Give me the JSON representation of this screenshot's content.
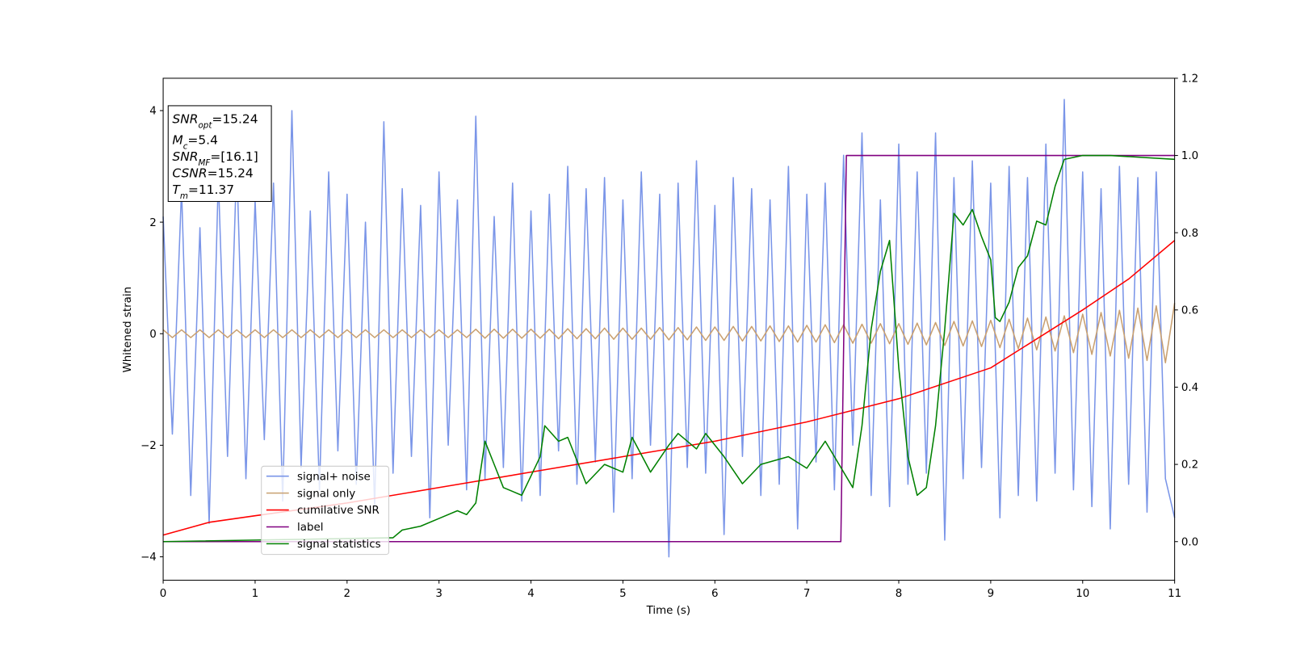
{
  "chart_data": {
    "type": "line",
    "xlabel": "Time (s)",
    "ylabel": "Whitened strain",
    "xlim": [
      0,
      11
    ],
    "xticks": [
      0,
      1,
      2,
      3,
      4,
      5,
      6,
      7,
      8,
      9,
      10,
      11
    ],
    "ylim": [
      -4.42,
      4.58
    ],
    "yticks": [
      {
        "value": -4,
        "label": "−4"
      },
      {
        "value": -2,
        "label": "−2"
      },
      0,
      2,
      4
    ],
    "y2lim": [
      -0.1,
      1.2
    ],
    "y2ticks": [
      {
        "value": 0,
        "label": "0.0"
      },
      {
        "value": 0.2,
        "label": "0.2"
      },
      {
        "value": 0.4,
        "label": "0.4"
      },
      {
        "value": 0.6,
        "label": "0.6"
      },
      {
        "value": 0.8,
        "label": "0.8"
      },
      {
        "value": 1,
        "label": "1.0"
      },
      {
        "value": 1.2,
        "label": "1.2"
      }
    ],
    "x": [
      0,
      0.1,
      0.2,
      0.3,
      0.4,
      0.5,
      0.6,
      0.7,
      0.8,
      0.9,
      1,
      1.1,
      1.2,
      1.3,
      1.4,
      1.5,
      1.6,
      1.7,
      1.8,
      1.9,
      2,
      2.1,
      2.2,
      2.3,
      2.4,
      2.5,
      2.6,
      2.7,
      2.8,
      2.9,
      3,
      3.1,
      3.2,
      3.3,
      3.4,
      3.5,
      3.6,
      3.7,
      3.8,
      3.9,
      4,
      4.1,
      4.2,
      4.3,
      4.4,
      4.5,
      4.6,
      4.7,
      4.8,
      4.9,
      5,
      5.1,
      5.2,
      5.3,
      5.4,
      5.5,
      5.6,
      5.7,
      5.8,
      5.9,
      6,
      6.1,
      6.2,
      6.3,
      6.4,
      6.5,
      6.6,
      6.7,
      6.8,
      6.9,
      7,
      7.1,
      7.2,
      7.3,
      7.4,
      7.5,
      7.6,
      7.7,
      7.8,
      7.9,
      8,
      8.1,
      8.2,
      8.3,
      8.4,
      8.5,
      8.6,
      8.7,
      8.8,
      8.9,
      9,
      9.1,
      9.2,
      9.3,
      9.4,
      9.5,
      9.6,
      9.7,
      9.8,
      9.9,
      10,
      10.1,
      10.2,
      10.3,
      10.4,
      10.5,
      10.6,
      10.7,
      10.8,
      10.9,
      11
    ],
    "series": [
      {
        "name": "signal+ noise",
        "color": "#7a95e8",
        "values": [
          2.1,
          -1.8,
          2.6,
          -2.9,
          1.9,
          -3.4,
          2.8,
          -2.2,
          3.1,
          -2.6,
          2.4,
          -1.9,
          2.7,
          -3.0,
          4.0,
          -2.4,
          2.2,
          -2.8,
          2.9,
          -2.1,
          2.5,
          -2.7,
          2.0,
          -3.1,
          3.8,
          -2.5,
          2.6,
          -2.2,
          2.3,
          -3.3,
          2.9,
          -2.0,
          2.4,
          -2.8,
          3.9,
          -2.6,
          2.1,
          -2.4,
          2.7,
          -3.0,
          2.2,
          -2.9,
          2.5,
          -2.1,
          3.0,
          -2.7,
          2.6,
          -2.3,
          2.8,
          -3.2,
          2.4,
          -2.6,
          2.9,
          -2.0,
          2.5,
          -4.0,
          2.7,
          -2.4,
          3.1,
          -2.5,
          2.3,
          -3.6,
          2.8,
          -2.2,
          2.6,
          -2.9,
          2.4,
          -2.7,
          3.0,
          -3.5,
          2.5,
          -2.3,
          2.7,
          -2.8,
          3.2,
          -2.0,
          3.6,
          -2.9,
          2.4,
          -3.1,
          3.4,
          -2.7,
          2.9,
          -2.5,
          3.6,
          -3.7,
          2.8,
          -2.6,
          3.1,
          -2.4,
          2.7,
          -3.3,
          3.0,
          -2.9,
          2.8,
          -3.0,
          3.4,
          -2.5,
          4.2,
          -2.8,
          2.9,
          -3.1,
          2.6,
          -3.5,
          3.0,
          -2.7,
          2.8,
          -3.2,
          2.9,
          -2.6,
          -3.3
        ]
      },
      {
        "name": "signal only",
        "color": "#c9a070",
        "values": [
          0.07,
          -0.07,
          0.07,
          -0.07,
          0.07,
          -0.07,
          0.07,
          -0.07,
          0.07,
          -0.07,
          0.07,
          -0.07,
          0.07,
          -0.07,
          0.07,
          -0.07,
          0.07,
          -0.07,
          0.07,
          -0.07,
          0.07,
          -0.07,
          0.07,
          -0.07,
          0.07,
          -0.07,
          0.07,
          -0.07,
          0.07,
          -0.07,
          0.07,
          -0.07,
          0.07,
          -0.07,
          0.08,
          -0.08,
          0.08,
          -0.08,
          0.08,
          -0.08,
          0.08,
          -0.08,
          0.08,
          -0.09,
          0.09,
          -0.09,
          0.09,
          -0.09,
          0.1,
          -0.1,
          0.1,
          -0.1,
          0.1,
          -0.1,
          0.11,
          -0.11,
          0.11,
          -0.11,
          0.12,
          -0.12,
          0.12,
          -0.12,
          0.13,
          -0.13,
          0.13,
          -0.13,
          0.14,
          -0.14,
          0.14,
          -0.15,
          0.15,
          -0.15,
          0.16,
          -0.16,
          0.16,
          -0.17,
          0.17,
          -0.17,
          0.18,
          -0.18,
          0.18,
          -0.19,
          0.19,
          -0.2,
          0.2,
          -0.21,
          0.22,
          -0.22,
          0.23,
          -0.23,
          0.24,
          -0.25,
          0.26,
          -0.27,
          0.28,
          -0.29,
          0.3,
          -0.31,
          0.32,
          -0.34,
          0.35,
          -0.37,
          0.38,
          -0.4,
          0.42,
          -0.44,
          0.46,
          -0.48,
          0.5,
          -0.52,
          0.55
        ]
      },
      {
        "name": "cumilative SNR",
        "color": "red",
        "axis": "y2",
        "x": [
          0,
          0.5,
          1,
          2,
          3,
          4,
          5,
          6,
          7,
          8,
          9,
          10,
          10.5,
          11
        ],
        "values": [
          0.017,
          0.05,
          0.067,
          0.1,
          0.14,
          0.18,
          0.22,
          0.26,
          0.31,
          0.37,
          0.45,
          0.6,
          0.68,
          0.78
        ]
      },
      {
        "name": "label",
        "color": "purple",
        "axis": "y2",
        "x": [
          0,
          7.37,
          7.43,
          11
        ],
        "values": [
          0,
          0,
          1,
          1
        ]
      },
      {
        "name": "signal statistics",
        "color": "green",
        "axis": "y2",
        "x": [
          0,
          2.5,
          2.6,
          2.8,
          3.0,
          3.2,
          3.3,
          3.4,
          3.5,
          3.6,
          3.7,
          3.9,
          4.0,
          4.1,
          4.15,
          4.3,
          4.4,
          4.6,
          4.8,
          5.0,
          5.1,
          5.3,
          5.5,
          5.6,
          5.8,
          5.9,
          6.1,
          6.3,
          6.5,
          6.8,
          7.0,
          7.2,
          7.4,
          7.5,
          7.6,
          7.7,
          7.8,
          7.9,
          8.0,
          8.1,
          8.2,
          8.3,
          8.4,
          8.5,
          8.6,
          8.7,
          8.8,
          8.9,
          9.0,
          9.05,
          9.1,
          9.2,
          9.3,
          9.4,
          9.5,
          9.6,
          9.7,
          9.8,
          10.0,
          10.3,
          11
        ],
        "values": [
          0,
          0.01,
          0.03,
          0.04,
          0.06,
          0.08,
          0.07,
          0.1,
          0.26,
          0.2,
          0.14,
          0.12,
          0.17,
          0.22,
          0.3,
          0.26,
          0.27,
          0.15,
          0.2,
          0.18,
          0.27,
          0.18,
          0.25,
          0.28,
          0.24,
          0.28,
          0.22,
          0.15,
          0.2,
          0.22,
          0.19,
          0.26,
          0.18,
          0.14,
          0.3,
          0.55,
          0.7,
          0.78,
          0.45,
          0.22,
          0.12,
          0.14,
          0.3,
          0.55,
          0.85,
          0.82,
          0.86,
          0.79,
          0.73,
          0.58,
          0.57,
          0.62,
          0.71,
          0.74,
          0.83,
          0.82,
          0.92,
          0.99,
          1.0,
          1.0,
          0.99
        ]
      }
    ],
    "annotations": [
      {
        "base": "SNR",
        "sub": "opt",
        "rest": "=15.24"
      },
      {
        "base": "M",
        "sub": "c",
        "rest": "=5.4"
      },
      {
        "base": "SNR",
        "sub": "MF",
        "rest": "=[16.1]"
      },
      {
        "base": "CSNR",
        "rest": "=15.24"
      },
      {
        "base": "T",
        "sub": "m",
        "rest": "=11.37"
      }
    ]
  }
}
